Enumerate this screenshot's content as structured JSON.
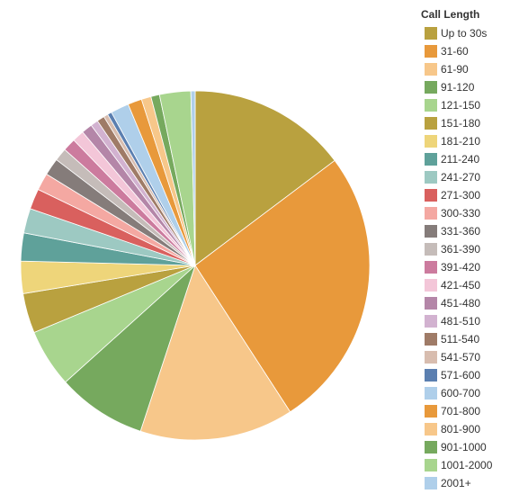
{
  "chart_data": {
    "type": "pie",
    "legend_title": "Call Length",
    "categories": [
      "Up to 30s",
      "31-60",
      "61-90",
      "91-120",
      "121-150",
      "151-180",
      "181-210",
      "211-240",
      "241-270",
      "271-300",
      "300-330",
      "331-360",
      "361-390",
      "391-420",
      "421-450",
      "451-480",
      "481-510",
      "511-540",
      "541-570",
      "571-600",
      "600-700",
      "701-800",
      "801-900",
      "901-1000",
      "1001-2000",
      "2001+"
    ],
    "values": [
      14.8,
      26.2,
      14.3,
      8.3,
      5.4,
      3.7,
      3.0,
      2.6,
      2.3,
      1.9,
      1.6,
      1.6,
      1.2,
      1.2,
      1.1,
      1.0,
      0.7,
      0.7,
      0.4,
      0.4,
      1.7,
      1.3,
      0.9,
      0.8,
      2.9,
      0.4
    ],
    "colors": [
      "#b9a13f",
      "#e8993b",
      "#f7c78a",
      "#76a95e",
      "#a8d58e",
      "#b9a13f",
      "#eed57a",
      "#5fa19a",
      "#9dc9c2",
      "#d9605e",
      "#f4a8a2",
      "#857c7a",
      "#c5bcb9",
      "#cc7b9e",
      "#f3c6d8",
      "#b486a8",
      "#d2b2d0",
      "#9f7b67",
      "#d8bdaf",
      "#5b7fb0",
      "#afcfea",
      "#e8993b",
      "#f7c78a",
      "#76a95e",
      "#a8d58e",
      "#afcfea"
    ],
    "legend_position": "right"
  }
}
